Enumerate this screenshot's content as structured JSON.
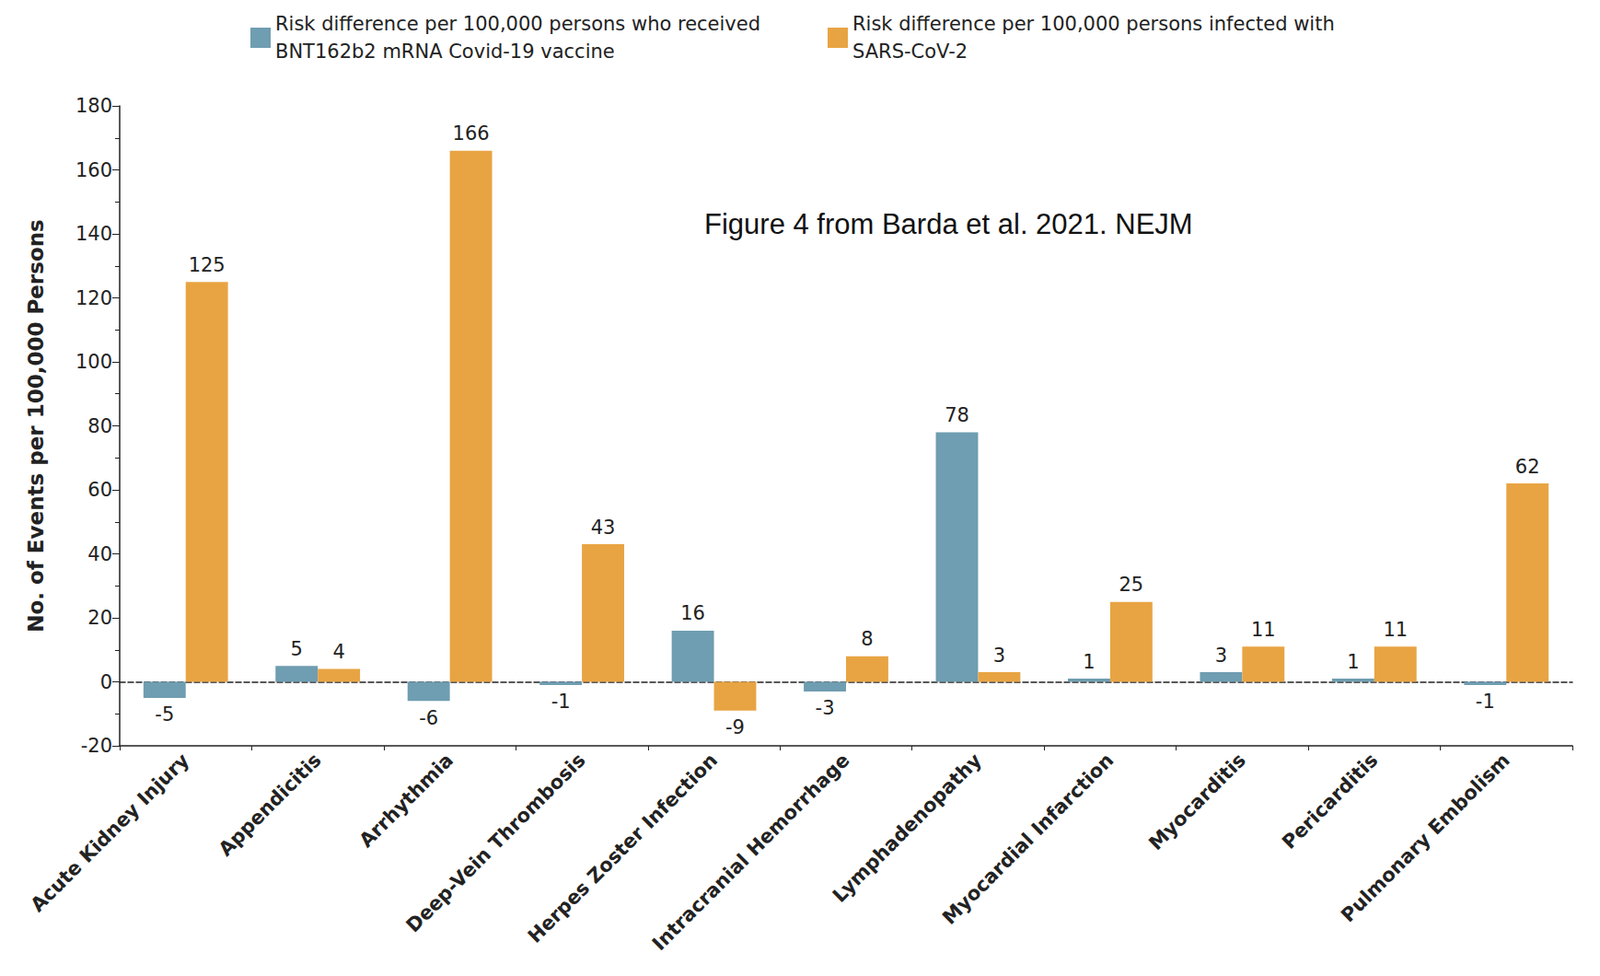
{
  "chart_data": {
    "type": "bar",
    "annotation": "Figure 4 from Barda et al. 2021. NEJM",
    "y_label": "No. of Events per 100,000 Persons",
    "categories": [
      "Acute Kidney Injury",
      "Appendicitis",
      "Arrhythmia",
      "Deep-Vein Thrombosis",
      "Herpes Zoster Infection",
      "Intracranial Hemorrhage",
      "Lymphadenopathy",
      "Myocardial Infarction",
      "Myocarditis",
      "Pericarditis",
      "Pulmonary Embolism"
    ],
    "series": [
      {
        "name": "Risk difference per 100,000 persons who received BNT162b2 mRNA Covid-19 vaccine",
        "color": "#6f9db1",
        "values": [
          -5,
          5,
          -6,
          -1,
          16,
          -3,
          78,
          1,
          3,
          1,
          -1
        ]
      },
      {
        "name": "Risk difference per 100,000 persons infected with SARS-CoV-2",
        "color": "#e8a443",
        "values": [
          125,
          4,
          166,
          43,
          -9,
          8,
          3,
          25,
          11,
          11,
          62
        ]
      }
    ],
    "ylim": [
      -20,
      180
    ],
    "yticks": [
      -20,
      0,
      20,
      40,
      60,
      80,
      100,
      120,
      140,
      160,
      180
    ],
    "grid": false,
    "legend": "top",
    "data_labels": true
  }
}
